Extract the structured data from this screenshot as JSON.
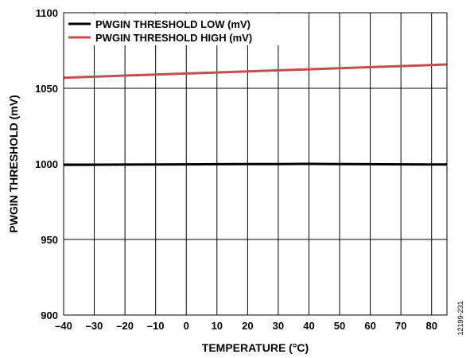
{
  "chart_data": {
    "type": "line",
    "xlabel": "TEMPERATURE (°C)",
    "ylabel": "PWGIN THRESHOLD (mV)",
    "xlim": [
      -40,
      85
    ],
    "ylim": [
      900,
      1100
    ],
    "xticks": [
      -40,
      -30,
      -20,
      -10,
      0,
      10,
      20,
      30,
      40,
      50,
      60,
      70,
      80
    ],
    "xtick_labels": [
      "–40",
      "–30",
      "–20",
      "–10",
      "0",
      "10",
      "20",
      "30",
      "40",
      "50",
      "60",
      "70",
      "80"
    ],
    "yticks": [
      900,
      950,
      1000,
      1050,
      1100
    ],
    "ytick_labels": [
      "900",
      "950",
      "1000",
      "1050",
      "1100"
    ],
    "grid": true,
    "legend_position": "top-left",
    "series": [
      {
        "name": "PWGIN THRESHOLD LOW (mV)",
        "color": "#000000",
        "x": [
          -40,
          -30,
          -20,
          -10,
          0,
          10,
          20,
          30,
          40,
          50,
          60,
          70,
          80,
          85
        ],
        "y": [
          999.3,
          999.4,
          999.5,
          999.6,
          999.7,
          999.8,
          999.9,
          999.9,
          1000.0,
          999.9,
          999.8,
          999.7,
          999.6,
          999.6
        ]
      },
      {
        "name": "PWGIN THRESHOLD HIGH (mV)",
        "color": "#c0504d",
        "x": [
          -40,
          -30,
          -20,
          -10,
          0,
          10,
          20,
          30,
          40,
          50,
          60,
          70,
          80,
          85
        ],
        "y": [
          1057.0,
          1057.7,
          1058.4,
          1059.1,
          1059.8,
          1060.5,
          1061.2,
          1061.9,
          1062.6,
          1063.3,
          1064.0,
          1064.7,
          1065.4,
          1065.8
        ]
      }
    ]
  },
  "figure_id": "12199-231"
}
